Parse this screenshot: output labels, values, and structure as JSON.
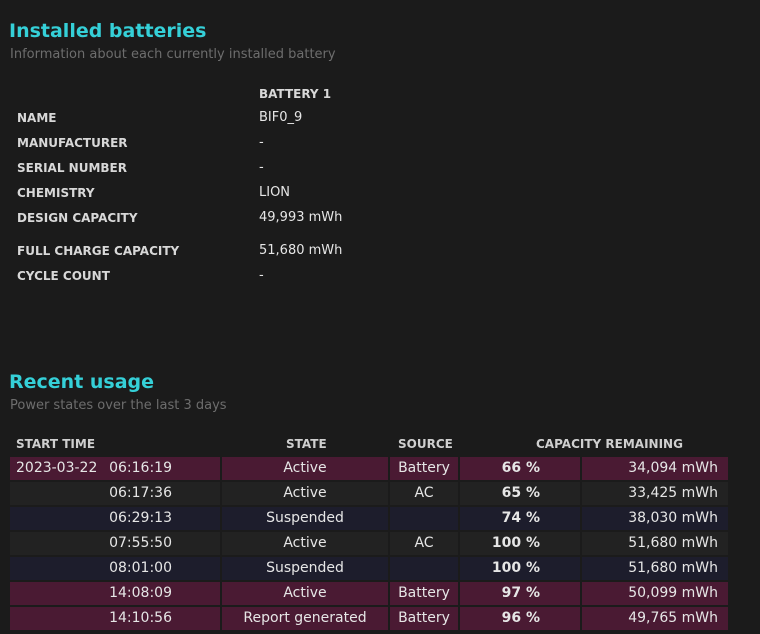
{
  "installed": {
    "title": "Installed batteries",
    "subtitle": "Information about each currently installed battery",
    "column": "BATTERY 1",
    "rows": [
      {
        "label": "NAME",
        "value": "BIF0_9"
      },
      {
        "label": "MANUFACTURER",
        "value": "-"
      },
      {
        "label": "SERIAL NUMBER",
        "value": "-"
      },
      {
        "label": "CHEMISTRY",
        "value": "LION"
      },
      {
        "label": "DESIGN CAPACITY",
        "value": "49,993 mWh"
      },
      {
        "label": "FULL CHARGE CAPACITY",
        "value": "51,680 mWh"
      },
      {
        "label": "CYCLE COUNT",
        "value": "-"
      }
    ]
  },
  "usage": {
    "title": "Recent usage",
    "subtitle": "Power states over the last 3 days",
    "headers": {
      "start": "START TIME",
      "state": "STATE",
      "source": "SOURCE",
      "capacity": "CAPACITY REMAINING"
    },
    "date": "2023-03-22",
    "rows": [
      {
        "time": "06:16:19",
        "state": "Active",
        "source": "Battery",
        "pct": "66 %",
        "mwh": "34,094 mWh"
      },
      {
        "time": "06:17:36",
        "state": "Active",
        "source": "AC",
        "pct": "65 %",
        "mwh": "33,425 mWh"
      },
      {
        "time": "06:29:13",
        "state": "Suspended",
        "source": "",
        "pct": "74 %",
        "mwh": "38,030 mWh"
      },
      {
        "time": "07:55:50",
        "state": "Active",
        "source": "AC",
        "pct": "100 %",
        "mwh": "51,680 mWh"
      },
      {
        "time": "08:01:00",
        "state": "Suspended",
        "source": "",
        "pct": "100 %",
        "mwh": "51,680 mWh"
      },
      {
        "time": "14:08:09",
        "state": "Active",
        "source": "Battery",
        "pct": "97 %",
        "mwh": "50,099 mWh"
      },
      {
        "time": "14:10:56",
        "state": "Report generated",
        "source": "Battery",
        "pct": "96 %",
        "mwh": "49,765 mWh"
      }
    ]
  },
  "colors": {
    "accent": "#35d0d8",
    "battery_row": "#4a1a33",
    "ac_row": "#222222",
    "suspended_row": "#1d1d2c"
  }
}
